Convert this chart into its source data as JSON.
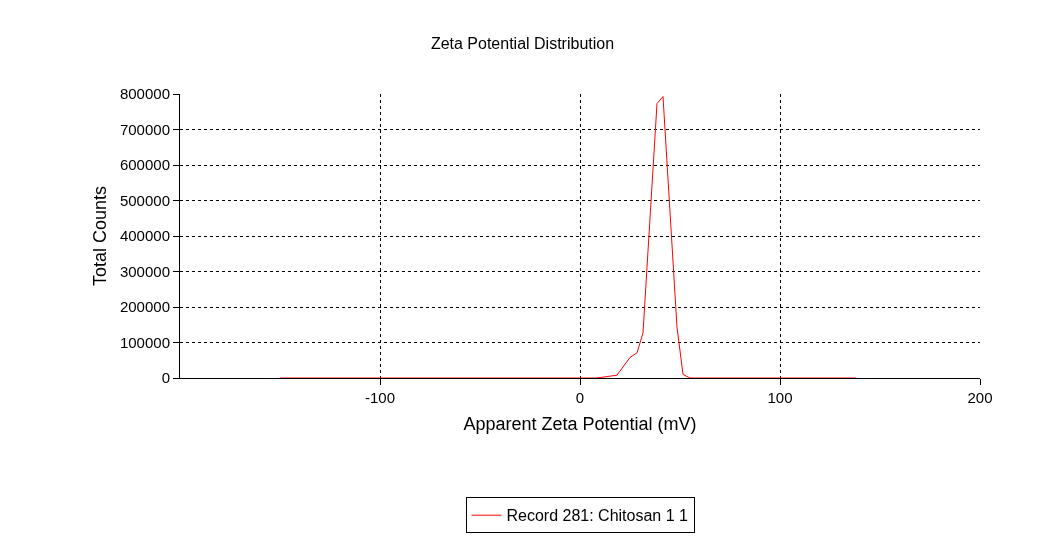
{
  "chart_data": {
    "type": "line",
    "title": "Zeta Potential Distribution",
    "xlabel": "Apparent Zeta Potential (mV)",
    "ylabel": "Total Counts",
    "x": [
      -150,
      -10,
      8.5,
      18.5,
      25,
      28.5,
      31.5,
      38.5,
      41.5,
      48.5,
      51.5,
      55,
      138
    ],
    "series": [
      {
        "name": "Record 281: Chitosan 1 1",
        "color": "#ff0000",
        "values": [
          0,
          0,
          0,
          8000,
          58000,
          71000,
          127000,
          773000,
          793000,
          143000,
          10000,
          0,
          0
        ]
      }
    ],
    "xlim": [
      -200,
      200
    ],
    "xticks": [
      -100,
      0,
      100,
      200
    ],
    "ylim": [
      0,
      800000
    ],
    "yticks": [
      0,
      100000,
      200000,
      300000,
      400000,
      500000,
      600000,
      700000,
      800000
    ],
    "grid": true,
    "legend": "bottom",
    "marker": "none",
    "line_style": "solid"
  }
}
